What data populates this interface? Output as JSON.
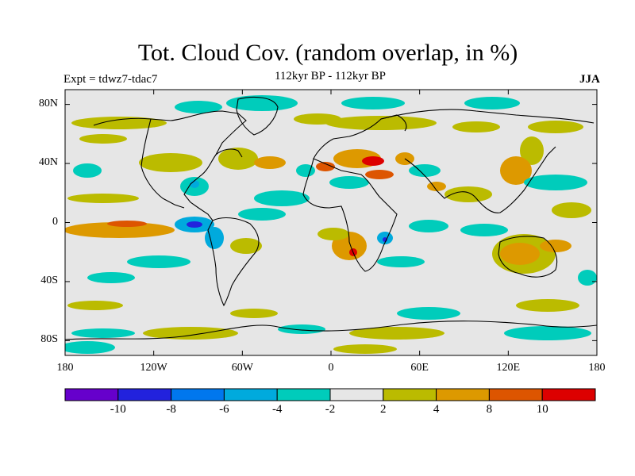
{
  "figure": {
    "title": "Tot. Cloud Cov. (random overlap, in %)",
    "subtitle": "112kyr BP - 112kyr BP",
    "left_label": "Expt = tdwz7-tdac7",
    "right_label": "JJA"
  },
  "map": {
    "lat_ticks": [
      {
        "value": 80,
        "label": "80N"
      },
      {
        "value": 40,
        "label": "40N"
      },
      {
        "value": 0,
        "label": "0"
      },
      {
        "value": -40,
        "label": "40S"
      },
      {
        "value": -80,
        "label": "80S"
      }
    ],
    "lon_ticks": [
      {
        "value": -180,
        "label": "180"
      },
      {
        "value": -120,
        "label": "120W"
      },
      {
        "value": -60,
        "label": "60W"
      },
      {
        "value": 0,
        "label": "0"
      },
      {
        "value": 60,
        "label": "60E"
      },
      {
        "value": 120,
        "label": "120E"
      },
      {
        "value": 180,
        "label": "180"
      }
    ]
  },
  "colorbar": {
    "colors": [
      "#6600cc",
      "#2222dd",
      "#0077ee",
      "#00aadd",
      "#00ccbb",
      "#e6e6e6",
      "#bbbb00",
      "#dd9900",
      "#dd5500",
      "#dd0000"
    ],
    "labels": [
      "-10",
      "-8",
      "-6",
      "-4",
      "-2",
      "2",
      "4",
      "8",
      "10"
    ]
  }
}
